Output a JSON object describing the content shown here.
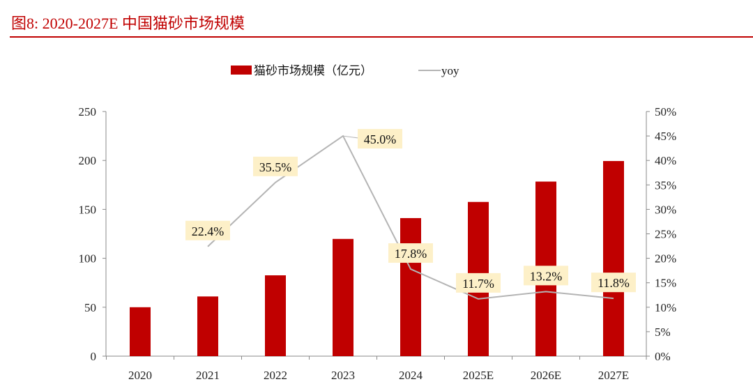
{
  "title": "图8:  2020-2027E 中国猫砂市场规模",
  "chart_data": {
    "type": "bar",
    "title": "2020-2027E 中国猫砂市场规模",
    "categories": [
      "2020",
      "2021",
      "2022",
      "2023",
      "2024",
      "2025E",
      "2026E",
      "2027E"
    ],
    "series": [
      {
        "name": "猫砂市场规模（亿元）",
        "type": "bar",
        "axis": "left",
        "color": "#c00000",
        "values": [
          50,
          61,
          82.6,
          119.8,
          141.1,
          157.6,
          178.4,
          199.4
        ]
      },
      {
        "name": "yoy",
        "type": "line",
        "axis": "right",
        "color": "#b4b4b4",
        "values": [
          null,
          22.4,
          35.5,
          45.0,
          17.8,
          11.7,
          13.2,
          11.8
        ],
        "labels": [
          "",
          "22.4%",
          "35.5%",
          "45.0%",
          "17.8%",
          "11.7%",
          "13.2%",
          "11.8%"
        ]
      }
    ],
    "ylim": [
      0,
      250
    ],
    "yticks": [
      "0",
      "50",
      "100",
      "150",
      "200",
      "250"
    ],
    "y2lim": [
      0,
      50
    ],
    "y2ticks": [
      "0%",
      "5%",
      "10%",
      "15%",
      "20%",
      "25%",
      "30%",
      "35%",
      "40%",
      "45%",
      "50%"
    ],
    "label_bg": "#fdf0c8",
    "legend": "top",
    "grid": false
  }
}
